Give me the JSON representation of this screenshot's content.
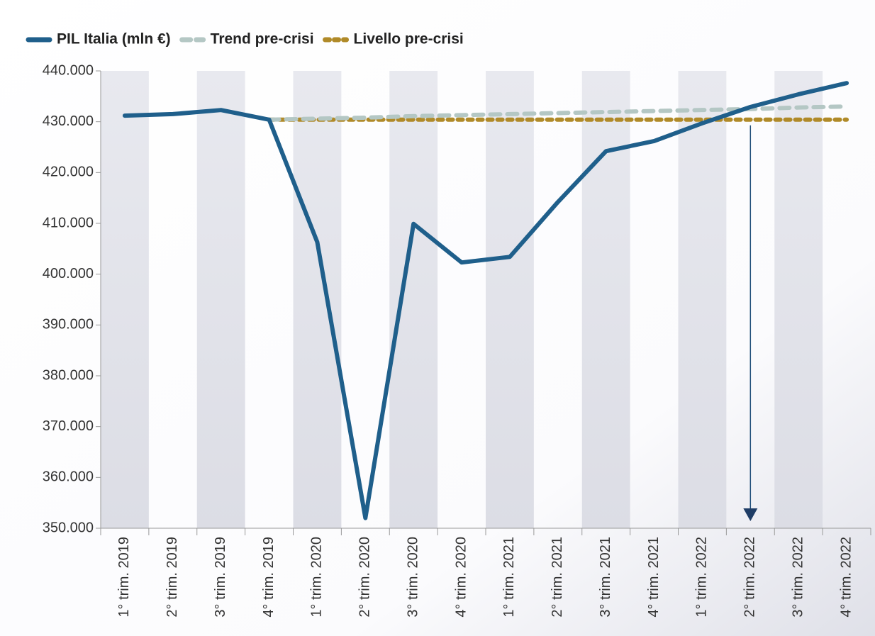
{
  "chart_data": {
    "type": "line",
    "categories": [
      "1° trim. 2019",
      "2° trim. 2019",
      "3° trim. 2019",
      "4° trim. 2019",
      "1° trim. 2020",
      "2° trim. 2020",
      "3° trim. 2020",
      "4° trim. 2020",
      "1° trim. 2021",
      "2° trim. 2021",
      "3° trim. 2021",
      "4° trim. 2021",
      "1° trim. 2022",
      "2° trim. 2022",
      "3° trim. 2022",
      "4° trim. 2022"
    ],
    "series": [
      {
        "name": "PIL Italia (mln €)",
        "color": "#1f5f8b",
        "style": "solid",
        "values": [
          431200,
          431500,
          432300,
          430400,
          406300,
          352000,
          409900,
          402300,
          403400,
          414200,
          424200,
          426200,
          429700,
          432900,
          435400,
          437600
        ]
      },
      {
        "name": "Trend pre-crisi",
        "color": "#b4c7c4",
        "style": "dashed",
        "values": [
          null,
          null,
          null,
          430400,
          430600,
          430800,
          431100,
          431300,
          431500,
          431700,
          431900,
          432100,
          432300,
          432500,
          432800,
          433000
        ]
      },
      {
        "name": "Livello pre-crisi",
        "color": "#b08a28",
        "style": "dotted",
        "values": [
          null,
          null,
          null,
          430400,
          430400,
          430400,
          430400,
          430400,
          430400,
          430400,
          430400,
          430400,
          430400,
          430400,
          430400,
          430400
        ]
      }
    ],
    "ylim": [
      350000,
      440000
    ],
    "yticks": [
      {
        "value": 350000,
        "label": "350.000"
      },
      {
        "value": 360000,
        "label": "360.000"
      },
      {
        "value": 370000,
        "label": "370.000"
      },
      {
        "value": 380000,
        "label": "380.000"
      },
      {
        "value": 390000,
        "label": "390.000"
      },
      {
        "value": 400000,
        "label": "400.000"
      },
      {
        "value": 410000,
        "label": "410.000"
      },
      {
        "value": 420000,
        "label": "420.000"
      },
      {
        "value": 430000,
        "label": "430.000"
      },
      {
        "value": 440000,
        "label": "440.000"
      }
    ],
    "legend": "top-left",
    "grid": false,
    "banded_background": true
  }
}
